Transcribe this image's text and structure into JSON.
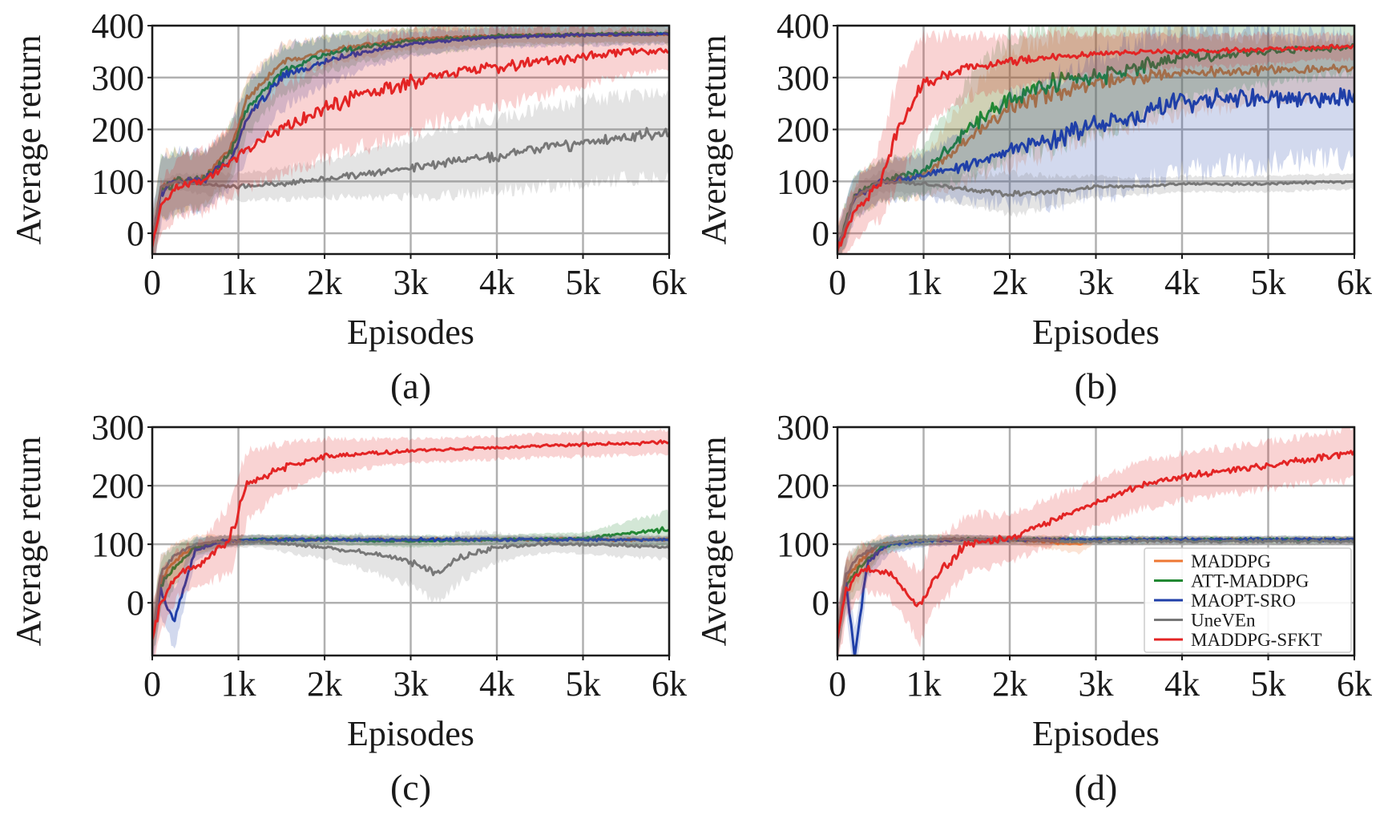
{
  "chart_data": [
    {
      "type": "line",
      "caption": "(a)",
      "xlabel": "Episodes",
      "ylabel": "Average return",
      "xlim": [
        0,
        6000
      ],
      "ylim": [
        -40,
        400
      ],
      "xticks": [
        0,
        1000,
        2000,
        3000,
        4000,
        5000,
        6000
      ],
      "xtick_labels": [
        "0",
        "1k",
        "2k",
        "3k",
        "4k",
        "5k",
        "6k"
      ],
      "yticks": [
        0,
        100,
        200,
        300,
        400
      ],
      "ytick_labels": [
        "0",
        "100",
        "200",
        "300",
        "400"
      ],
      "grid": true,
      "series": [
        {
          "name": "MADDPG",
          "color": "#ee7733",
          "x": [
            0,
            100,
            300,
            600,
            900,
            1100,
            1500,
            2000,
            2500,
            3000,
            3500,
            4000,
            4500,
            5000,
            5500,
            6000
          ],
          "y": [
            -20,
            90,
            100,
            105,
            160,
            260,
            330,
            350,
            365,
            375,
            378,
            380,
            382,
            382,
            383,
            383
          ],
          "band": [
            60,
            60,
            50,
            50,
            40,
            35,
            30,
            25,
            20,
            20,
            15,
            15,
            15,
            15,
            15
          ]
        },
        {
          "name": "ATT-MADDPG",
          "color": "#228833",
          "x": [
            0,
            100,
            300,
            600,
            900,
            1100,
            1500,
            2000,
            2500,
            3000,
            3500,
            4000,
            4500,
            5000,
            5500,
            6000
          ],
          "y": [
            -20,
            85,
            100,
            103,
            150,
            240,
            310,
            345,
            360,
            370,
            375,
            380,
            382,
            383,
            385,
            385
          ],
          "band": [
            60,
            60,
            50,
            55,
            50,
            45,
            35,
            30,
            25,
            25,
            20,
            20,
            20,
            20,
            20
          ]
        },
        {
          "name": "MAOPT-SRO",
          "color": "#1f3fa8",
          "x": [
            0,
            100,
            300,
            600,
            900,
            1100,
            1500,
            2000,
            2500,
            3000,
            3500,
            4000,
            4500,
            5000,
            5500,
            6000
          ],
          "y": [
            -20,
            80,
            100,
            103,
            140,
            220,
            300,
            330,
            350,
            365,
            372,
            378,
            380,
            382,
            383,
            383
          ],
          "band": [
            60,
            60,
            55,
            60,
            70,
            60,
            45,
            30,
            25,
            20,
            20,
            20,
            20,
            20,
            20
          ]
        },
        {
          "name": "UneVEn",
          "color": "#777777",
          "x": [
            0,
            100,
            300,
            600,
            1000,
            1500,
            2000,
            2500,
            3000,
            3500,
            4000,
            4500,
            5000,
            5500,
            6000
          ],
          "y": [
            -20,
            90,
            100,
            95,
            90,
            95,
            105,
            115,
            125,
            140,
            150,
            165,
            175,
            185,
            195
          ],
          "band": [
            10,
            15,
            20,
            25,
            30,
            35,
            45,
            55,
            65,
            70,
            75,
            80,
            80,
            80
          ]
        },
        {
          "name": "MADDPG-SFKT",
          "color": "#e32424",
          "x": [
            0,
            100,
            300,
            600,
            1000,
            1500,
            2000,
            2500,
            3000,
            3500,
            4000,
            4500,
            5000,
            5500,
            6000
          ],
          "y": [
            -20,
            50,
            90,
            100,
            150,
            200,
            240,
            270,
            290,
            310,
            320,
            330,
            340,
            350,
            350
          ],
          "band": [
            50,
            55,
            60,
            70,
            85,
            95,
            100,
            95,
            85,
            75,
            65,
            55,
            45,
            35
          ]
        }
      ]
    },
    {
      "type": "line",
      "caption": "(b)",
      "xlabel": "Episodes",
      "ylabel": "Average return",
      "xlim": [
        0,
        6000
      ],
      "ylim": [
        -40,
        400
      ],
      "xticks": [
        0,
        1000,
        2000,
        3000,
        4000,
        5000,
        6000
      ],
      "xtick_labels": [
        "0",
        "1k",
        "2k",
        "3k",
        "4k",
        "5k",
        "6k"
      ],
      "yticks": [
        0,
        100,
        200,
        300,
        400
      ],
      "ytick_labels": [
        "0",
        "100",
        "200",
        "300",
        "400"
      ],
      "grid": true,
      "series": [
        {
          "name": "MADDPG",
          "color": "#ee7733",
          "x": [
            0,
            200,
            500,
            1000,
            1500,
            2000,
            2500,
            3000,
            3500,
            4000,
            4500,
            5000,
            5500,
            6000
          ],
          "y": [
            -30,
            70,
            100,
            110,
            180,
            240,
            270,
            290,
            300,
            310,
            310,
            315,
            315,
            318
          ],
          "band": [
            40,
            40,
            40,
            80,
            110,
            110,
            100,
            90,
            80,
            70,
            60,
            55,
            50
          ]
        },
        {
          "name": "ATT-MADDPG",
          "color": "#228833",
          "x": [
            0,
            200,
            500,
            1000,
            1500,
            2000,
            2500,
            3000,
            3500,
            4000,
            4500,
            5000,
            5500,
            6000
          ],
          "y": [
            -30,
            75,
            100,
            120,
            200,
            260,
            290,
            300,
            320,
            340,
            345,
            350,
            355,
            360
          ],
          "band": [
            40,
            40,
            45,
            90,
            120,
            120,
            110,
            100,
            85,
            70,
            60,
            55,
            50
          ]
        },
        {
          "name": "MAOPT-SRO",
          "color": "#1f3fa8",
          "x": [
            0,
            200,
            500,
            1000,
            1500,
            2000,
            2500,
            3000,
            3500,
            4000,
            4500,
            5000,
            5500,
            6000
          ],
          "y": [
            -30,
            70,
            100,
            110,
            130,
            160,
            180,
            210,
            230,
            255,
            258,
            260,
            262,
            262
          ],
          "band": [
            40,
            40,
            40,
            70,
            100,
            120,
            130,
            140,
            140,
            130,
            125,
            120,
            120
          ]
        },
        {
          "name": "UneVEn",
          "color": "#777777",
          "x": [
            0,
            200,
            500,
            1000,
            1500,
            2000,
            2500,
            3000,
            3500,
            4000,
            4500,
            5000,
            5500,
            6000
          ],
          "y": [
            -30,
            70,
            100,
            95,
            85,
            75,
            80,
            90,
            90,
            95,
            95,
            95,
            98,
            100
          ],
          "band": [
            20,
            20,
            20,
            30,
            40,
            30,
            20,
            15,
            15,
            15,
            15,
            15,
            15
          ]
        },
        {
          "name": "MADDPG-SFKT",
          "color": "#e32424",
          "x": [
            0,
            200,
            500,
            700,
            1000,
            1500,
            2000,
            2500,
            3000,
            3500,
            4000,
            4500,
            5000,
            5500,
            6000
          ],
          "y": [
            -30,
            40,
            100,
            200,
            290,
            320,
            330,
            340,
            345,
            350,
            350,
            352,
            355,
            358,
            360
          ],
          "band": [
            50,
            70,
            100,
            90,
            60,
            50,
            45,
            40,
            35,
            30,
            30,
            30,
            25,
            25
          ]
        }
      ]
    },
    {
      "type": "line",
      "caption": "(c)",
      "xlabel": "Episodes",
      "ylabel": "Average return",
      "xlim": [
        0,
        6000
      ],
      "ylim": [
        -90,
        300
      ],
      "xticks": [
        0,
        1000,
        2000,
        3000,
        4000,
        5000,
        6000
      ],
      "xtick_labels": [
        "0",
        "1k",
        "2k",
        "3k",
        "4k",
        "5k",
        "6k"
      ],
      "yticks": [
        0,
        100,
        200,
        300
      ],
      "ytick_labels": [
        "0",
        "100",
        "200",
        "300"
      ],
      "grid": true,
      "series": [
        {
          "name": "MADDPG",
          "color": "#ee7733",
          "x": [
            0,
            100,
            250,
            500,
            800,
            1200,
            2000,
            3000,
            4000,
            5000,
            6000
          ],
          "y": [
            -60,
            40,
            70,
            100,
            105,
            108,
            108,
            108,
            108,
            108,
            108
          ],
          "band": [
            40,
            30,
            15,
            10,
            8,
            6,
            6,
            6,
            6,
            6
          ]
        },
        {
          "name": "ATT-MADDPG",
          "color": "#228833",
          "x": [
            0,
            100,
            250,
            500,
            800,
            1200,
            2000,
            3000,
            4000,
            5000,
            5500,
            6000
          ],
          "y": [
            -60,
            30,
            60,
            95,
            105,
            108,
            108,
            105,
            108,
            110,
            118,
            125
          ],
          "band": [
            40,
            35,
            15,
            10,
            8,
            8,
            10,
            8,
            10,
            20,
            30
          ]
        },
        {
          "name": "MAOPT-SRO",
          "color": "#1f3fa8",
          "x": [
            0,
            100,
            250,
            500,
            800,
            1200,
            2000,
            3000,
            4000,
            5000,
            6000
          ],
          "y": [
            -60,
            20,
            -30,
            90,
            105,
            108,
            108,
            108,
            108,
            108,
            108
          ],
          "band": [
            40,
            50,
            20,
            10,
            8,
            6,
            6,
            6,
            6,
            6
          ]
        },
        {
          "name": "UneVEn",
          "color": "#777777",
          "x": [
            0,
            100,
            250,
            500,
            800,
            1200,
            2000,
            2500,
            3000,
            3300,
            3600,
            4000,
            4500,
            5000,
            5500,
            6000
          ],
          "y": [
            -60,
            50,
            80,
            100,
            105,
            105,
            95,
            85,
            70,
            50,
            80,
            95,
            100,
            100,
            98,
            95
          ],
          "band": [
            30,
            20,
            10,
            10,
            10,
            20,
            30,
            40,
            50,
            40,
            25,
            15,
            15,
            20,
            20
          ]
        },
        {
          "name": "MADDPG-SFKT",
          "color": "#e32424",
          "x": [
            0,
            100,
            300,
            600,
            900,
            1100,
            1500,
            2000,
            2500,
            3000,
            3500,
            4000,
            4500,
            5000,
            5500,
            6000
          ],
          "y": [
            -60,
            0,
            50,
            70,
            110,
            200,
            230,
            250,
            255,
            260,
            262,
            265,
            268,
            270,
            272,
            275
          ],
          "band": [
            50,
            40,
            40,
            60,
            60,
            40,
            30,
            25,
            20,
            20,
            20,
            20,
            20,
            20,
            20
          ]
        }
      ]
    },
    {
      "type": "line",
      "caption": "(d)",
      "xlabel": "Episodes",
      "ylabel": "Average return",
      "xlim": [
        0,
        6000
      ],
      "ylim": [
        -90,
        300
      ],
      "xticks": [
        0,
        1000,
        2000,
        3000,
        4000,
        5000,
        6000
      ],
      "xtick_labels": [
        "0",
        "1k",
        "2k",
        "3k",
        "4k",
        "5k",
        "6k"
      ],
      "yticks": [
        0,
        100,
        200,
        300
      ],
      "ytick_labels": [
        "0",
        "100",
        "200",
        "300"
      ],
      "grid": true,
      "legend": {
        "position": "lower-right"
      },
      "series": [
        {
          "name": "MADDPG",
          "color": "#ee7733",
          "x": [
            0,
            100,
            250,
            500,
            800,
            1200,
            2000,
            2800,
            3000,
            4000,
            5000,
            6000
          ],
          "y": [
            -60,
            40,
            70,
            100,
            105,
            108,
            108,
            100,
            108,
            108,
            108,
            108
          ],
          "band": [
            40,
            30,
            15,
            10,
            8,
            6,
            15,
            6,
            6,
            6,
            6
          ]
        },
        {
          "name": "ATT-MADDPG",
          "color": "#228833",
          "x": [
            0,
            100,
            250,
            500,
            800,
            1200,
            2000,
            3000,
            4000,
            5000,
            6000
          ],
          "y": [
            -60,
            30,
            60,
            95,
            105,
            108,
            108,
            108,
            108,
            108,
            108
          ],
          "band": [
            40,
            35,
            15,
            10,
            8,
            6,
            6,
            6,
            6,
            6
          ]
        },
        {
          "name": "MAOPT-SRO",
          "color": "#1f3fa8",
          "x": [
            0,
            100,
            200,
            350,
            600,
            1000,
            1500,
            2000,
            3000,
            4000,
            5000,
            6000
          ],
          "y": [
            -60,
            30,
            -90,
            70,
            100,
            105,
            108,
            108,
            108,
            108,
            108,
            108
          ],
          "band": [
            40,
            50,
            30,
            15,
            10,
            8,
            6,
            6,
            6,
            6,
            6
          ]
        },
        {
          "name": "UneVEn",
          "color": "#777777",
          "x": [
            0,
            100,
            250,
            500,
            800,
            1200,
            2000,
            3000,
            4000,
            5000,
            6000
          ],
          "y": [
            -60,
            50,
            80,
            100,
            105,
            108,
            108,
            105,
            105,
            105,
            105
          ],
          "band": [
            30,
            20,
            10,
            10,
            8,
            6,
            6,
            6,
            6,
            6
          ]
        },
        {
          "name": "MADDPG-SFKT",
          "color": "#e32424",
          "x": [
            0,
            100,
            300,
            600,
            800,
            950,
            1100,
            1500,
            2000,
            2500,
            3000,
            3500,
            4000,
            4500,
            5000,
            5500,
            6000
          ],
          "y": [
            -60,
            20,
            60,
            50,
            20,
            -10,
            40,
            100,
            110,
            140,
            170,
            200,
            215,
            225,
            235,
            245,
            255
          ],
          "band": [
            50,
            40,
            40,
            50,
            60,
            60,
            50,
            40,
            40,
            40,
            40,
            40,
            40,
            40,
            40,
            45
          ]
        }
      ]
    }
  ]
}
